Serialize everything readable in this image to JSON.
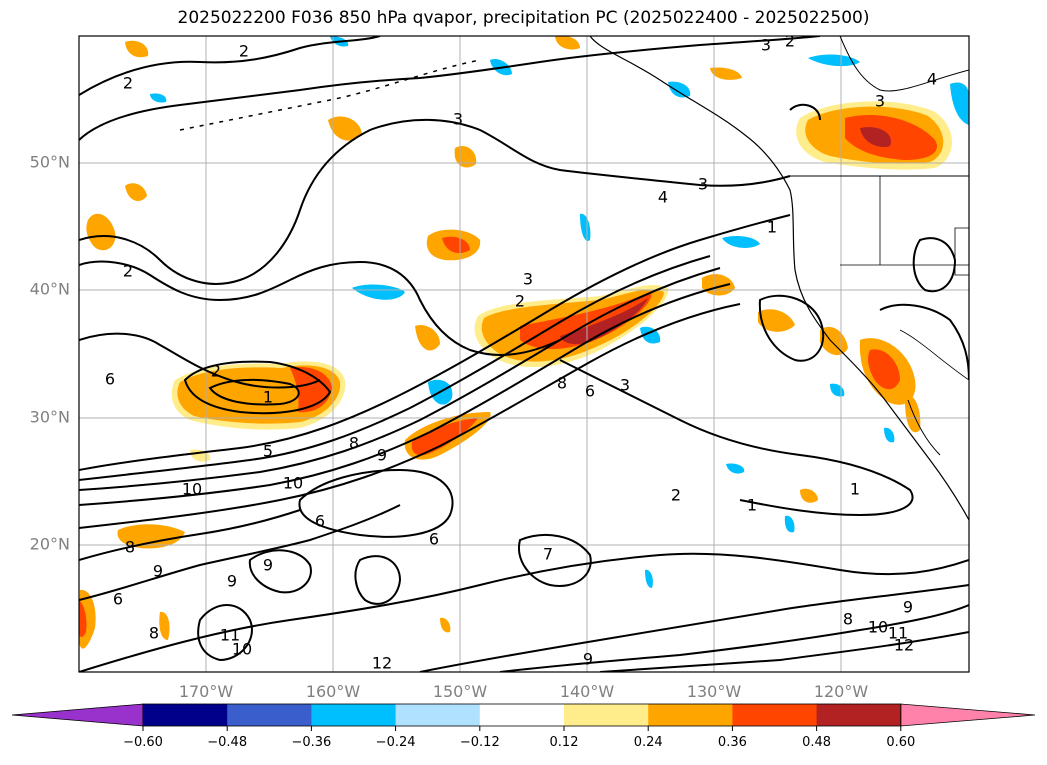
{
  "title": "2025022200 F036 850 hPa qvapor, precipitation PC (2025022400 - 2025022500)",
  "map": {
    "lat_labels": [
      "50°N",
      "40°N",
      "30°N",
      "20°N"
    ],
    "lon_labels": [
      "170°W",
      "160°W",
      "150°W",
      "140°W",
      "130°W",
      "120°W"
    ],
    "contour_labels": [
      {
        "text": "2"
      },
      {
        "text": "2"
      },
      {
        "text": "3"
      },
      {
        "text": "3"
      },
      {
        "text": "4"
      },
      {
        "text": "2"
      },
      {
        "text": "3"
      },
      {
        "text": "4"
      },
      {
        "text": "3"
      },
      {
        "text": "2"
      },
      {
        "text": "3"
      },
      {
        "text": "2"
      },
      {
        "text": "1"
      },
      {
        "text": "6"
      },
      {
        "text": "5"
      },
      {
        "text": "10"
      },
      {
        "text": "10"
      },
      {
        "text": "9"
      },
      {
        "text": "8"
      },
      {
        "text": "6"
      },
      {
        "text": "7"
      },
      {
        "text": "6"
      },
      {
        "text": "2"
      },
      {
        "text": "1"
      },
      {
        "text": "1"
      },
      {
        "text": "8"
      },
      {
        "text": "9"
      },
      {
        "text": "9"
      },
      {
        "text": "9"
      },
      {
        "text": "8"
      },
      {
        "text": "11"
      },
      {
        "text": "10"
      },
      {
        "text": "12"
      },
      {
        "text": "9"
      },
      {
        "text": "10"
      },
      {
        "text": "11"
      },
      {
        "text": "12"
      },
      {
        "text": "8"
      },
      {
        "text": "1"
      },
      {
        "text": "3"
      },
      {
        "text": "2"
      },
      {
        "text": "8"
      },
      {
        "text": "6"
      },
      {
        "text": "6"
      },
      {
        "text": "9"
      }
    ]
  },
  "colorbar": {
    "labels": [
      "−0.60",
      "−0.48",
      "−0.36",
      "−0.24",
      "−0.12",
      "0.12",
      "0.24",
      "0.36",
      "0.48",
      "0.60"
    ],
    "colors": [
      "#9932CC",
      "#00008B",
      "#3A5FCD",
      "#00BFFF",
      "#B0E2FF",
      "#FFFFFF",
      "#FFEC8B",
      "#FFA500",
      "#FF4500",
      "#B22222",
      "#FF82AB"
    ]
  }
}
